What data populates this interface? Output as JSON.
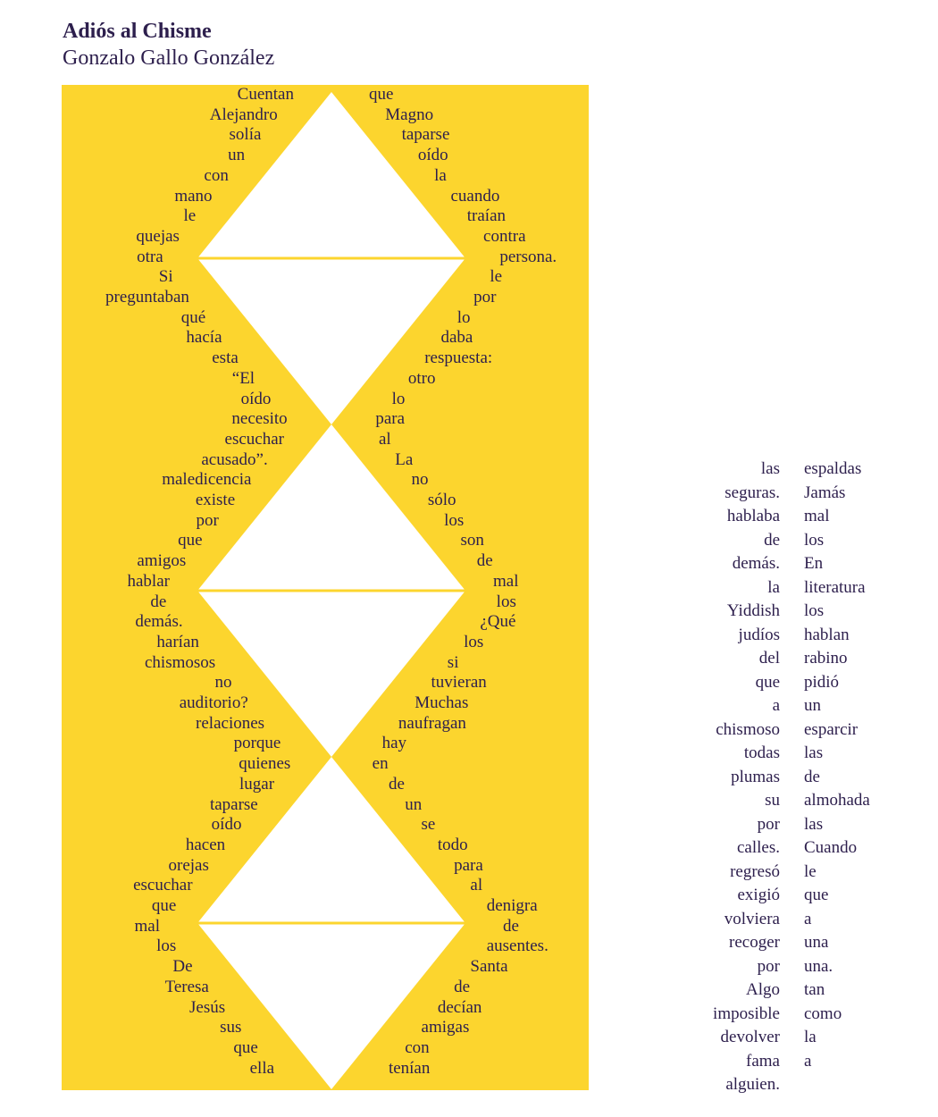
{
  "title": "Adiós al Chisme",
  "author": "Gonzalo Gallo González",
  "colors": {
    "panel": "#fcd52e",
    "text": "#2d1f4d",
    "diamond": "#ffffff"
  },
  "poem": {
    "left": [
      "Cuentan",
      "Alejandro",
      "solía",
      "un",
      "con",
      "mano",
      "le",
      "quejas",
      "otra",
      "Si",
      "preguntaban",
      "qué",
      "hacía",
      "esta",
      "“El",
      "oído",
      "necesito",
      "escuchar",
      "acusado”.",
      "maledicencia",
      "existe",
      "por",
      "que",
      "amigos",
      "hablar",
      "de",
      "demás.",
      "harían",
      "chismosos",
      "no",
      "auditorio?",
      "relaciones",
      "porque",
      "quienes",
      "lugar",
      "taparse",
      "oído",
      "hacen",
      "orejas",
      "escuchar",
      "que",
      "mal",
      "los",
      "De",
      "Teresa",
      "Jesús",
      "sus",
      "que",
      "ella"
    ],
    "right": [
      "que",
      "Magno",
      "taparse",
      "oído",
      "la",
      "cuando",
      "traían",
      "contra",
      "persona.",
      "le",
      "por",
      "lo",
      "daba",
      "respuesta:",
      "otro",
      "lo",
      "para",
      "al",
      "La",
      "no",
      "sólo",
      "los",
      "son",
      "de",
      "mal",
      "los",
      "¿Qué",
      "los",
      "si",
      "tuvieran",
      "Muchas",
      "naufragan",
      "hay",
      "en",
      "de",
      "un",
      "se",
      "todo",
      "para",
      "al",
      "denigra",
      "de",
      "ausentes.",
      "Santa",
      "de",
      "decían",
      "amigas",
      "con",
      "tenían"
    ]
  },
  "side_text": {
    "right_aligned": [
      "las",
      "seguras.",
      "hablaba",
      "de",
      "demás.",
      "la",
      "Yiddish",
      "judíos",
      "del",
      "que",
      "a",
      "chismoso",
      "todas",
      "plumas",
      "su",
      "por",
      "calles.",
      "regresó",
      "exigió",
      "volviera",
      "recoger",
      "por",
      "Algo",
      "imposible",
      "devolver",
      "fama",
      "alguien."
    ],
    "left_aligned": [
      "espaldas",
      "Jamás",
      "mal",
      "los",
      "En",
      "literatura",
      "los",
      "hablan",
      "rabino",
      "pidió",
      "un",
      "esparcir",
      "las",
      "de",
      "almohada",
      "las",
      "Cuando",
      "le",
      "que",
      "a",
      "una",
      "una.",
      "tan",
      "como",
      "la",
      "a"
    ]
  }
}
